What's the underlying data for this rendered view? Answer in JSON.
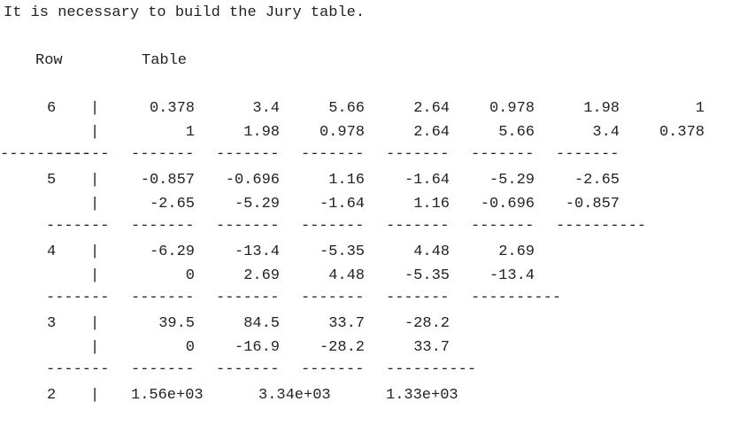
{
  "heading": "It is necessary to build the Jury table.",
  "headers": {
    "row": "Row",
    "table": "Table"
  },
  "sep_char": "|",
  "dash_short": "-------",
  "dash_long": "----------",
  "blocks": [
    {
      "row": "6",
      "line1": [
        "0.378",
        "3.4",
        "5.66",
        "2.64",
        "0.978",
        "1.98",
        "1"
      ],
      "line2": [
        "1",
        "1.98",
        "0.978",
        "2.64",
        "5.66",
        "3.4",
        "0.378"
      ]
    },
    {
      "row": "5",
      "line1": [
        "-0.857",
        "-0.696",
        "1.16",
        "-1.64",
        "-5.29",
        "-2.65"
      ],
      "line2": [
        "-2.65",
        "-5.29",
        "-1.64",
        "1.16",
        "-0.696",
        "-0.857"
      ]
    },
    {
      "row": "4",
      "line1": [
        "-6.29",
        "-13.4",
        "-5.35",
        "4.48",
        "2.69"
      ],
      "line2": [
        "0",
        "2.69",
        "4.48",
        "-5.35",
        "-13.4"
      ]
    },
    {
      "row": "3",
      "line1": [
        "39.5",
        "84.5",
        "33.7",
        "-28.2"
      ],
      "line2": [
        "0",
        "-16.9",
        "-28.2",
        "33.7"
      ]
    }
  ],
  "last_row": {
    "row": "2",
    "values": [
      "1.56e+03",
      "3.34e+03",
      "1.33e+03"
    ]
  }
}
